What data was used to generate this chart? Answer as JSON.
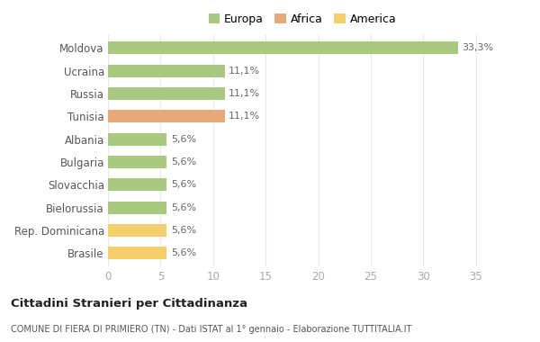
{
  "categories": [
    "Brasile",
    "Rep. Dominicana",
    "Bielorussia",
    "Slovacchia",
    "Bulgaria",
    "Albania",
    "Tunisia",
    "Russia",
    "Ucraina",
    "Moldova"
  ],
  "values": [
    5.6,
    5.6,
    5.6,
    5.6,
    5.6,
    5.6,
    11.1,
    11.1,
    11.1,
    33.3
  ],
  "colors": [
    "#f5cf6b",
    "#f5cf6b",
    "#a8c97f",
    "#a8c97f",
    "#a8c97f",
    "#a8c97f",
    "#e8a97a",
    "#a8c97f",
    "#a8c97f",
    "#a8c97f"
  ],
  "labels": [
    "5,6%",
    "5,6%",
    "5,6%",
    "5,6%",
    "5,6%",
    "5,6%",
    "11,1%",
    "11,1%",
    "11,1%",
    "33,3%"
  ],
  "legend_labels": [
    "Europa",
    "Africa",
    "America"
  ],
  "legend_colors": [
    "#a8c97f",
    "#e8a97a",
    "#f5cf6b"
  ],
  "title": "Cittadini Stranieri per Cittadinanza",
  "subtitle": "COMUNE DI FIERA DI PRIMIERO (TN) - Dati ISTAT al 1° gennaio - Elaborazione TUTTITALIA.IT",
  "xlim": [
    0,
    37
  ],
  "xticks": [
    0,
    5,
    10,
    15,
    20,
    25,
    30,
    35
  ],
  "bg_color": "#ffffff",
  "grid_color": "#e8e8e8",
  "bar_height": 0.55
}
